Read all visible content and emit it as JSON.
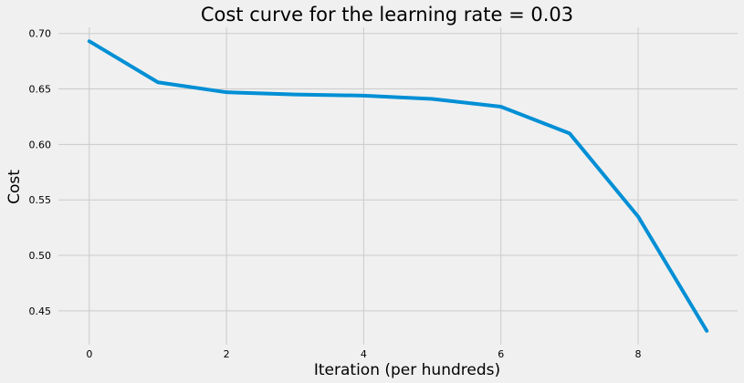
{
  "chart_data": {
    "type": "line",
    "title": "Cost curve for the learning rate = 0.03",
    "xlabel": "Iteration (per hundreds)",
    "ylabel": "Cost",
    "x": [
      0,
      1,
      2,
      3,
      4,
      5,
      6,
      7,
      8,
      9
    ],
    "series": [
      {
        "values": [
          0.693,
          0.656,
          0.647,
          0.645,
          0.644,
          0.641,
          0.634,
          0.61,
          0.535,
          0.432
        ],
        "color": "#008fd5"
      }
    ],
    "xlim": [
      -0.45,
      9.45
    ],
    "ylim": [
      0.4195,
      0.7055
    ],
    "xticks": [
      0,
      2,
      4,
      6,
      8
    ],
    "yticks": [
      0.45,
      0.5,
      0.55,
      0.6,
      0.65,
      0.7
    ],
    "xtick_labels": [
      "0",
      "2",
      "4",
      "6",
      "8"
    ],
    "ytick_labels": [
      "0.45",
      "0.50",
      "0.55",
      "0.60",
      "0.65",
      "0.70"
    ],
    "grid": true,
    "background": "#f0f0f0",
    "grid_color": "#cbcbcb"
  }
}
